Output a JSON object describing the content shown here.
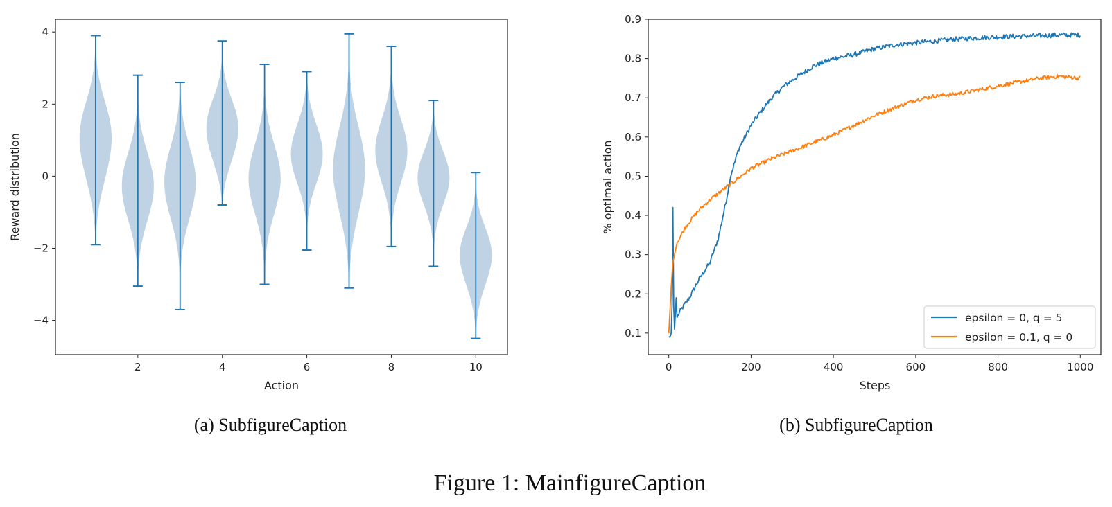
{
  "chart_data": [
    {
      "type": "violin",
      "xlabel": "Action",
      "ylabel": "Reward distribution",
      "xticks": [
        2,
        4,
        6,
        8,
        10
      ],
      "yticks": [
        -4,
        -2,
        0,
        2,
        4
      ],
      "xlim": [
        0.05,
        10.75
      ],
      "ylim": [
        -4.95,
        4.35
      ],
      "caption": "(a)  SubfigureCaption",
      "colors": {
        "fill": "#a9c4dc",
        "line": "#1f77b4"
      },
      "violins": [
        {
          "action": 1,
          "min": -1.9,
          "max": 3.9,
          "peaks": [
            [
              1.4,
              0.75
            ],
            [
              0.0,
              0.4
            ]
          ]
        },
        {
          "action": 2,
          "min": -3.05,
          "max": 2.8,
          "peaks": [
            [
              -0.1,
              0.75
            ],
            [
              -1.0,
              0.3
            ]
          ]
        },
        {
          "action": 3,
          "min": -3.7,
          "max": 2.6,
          "peaks": [
            [
              -0.3,
              0.75
            ],
            [
              0.5,
              0.35
            ]
          ]
        },
        {
          "action": 4,
          "min": -0.8,
          "max": 3.75,
          "peaks": [
            [
              1.6,
              0.75
            ],
            [
              0.5,
              0.5
            ]
          ]
        },
        {
          "action": 5,
          "min": -3.0,
          "max": 3.1,
          "peaks": [
            [
              0.1,
              0.75
            ],
            [
              -0.7,
              0.3
            ]
          ]
        },
        {
          "action": 6,
          "min": -2.05,
          "max": 2.9,
          "peaks": [
            [
              0.4,
              0.75
            ],
            [
              1.2,
              0.45
            ]
          ]
        },
        {
          "action": 7,
          "min": -3.1,
          "max": 3.95,
          "peaks": [
            [
              0.5,
              0.75
            ],
            [
              -0.8,
              0.4
            ]
          ]
        },
        {
          "action": 8,
          "min": -1.95,
          "max": 3.6,
          "peaks": [
            [
              0.9,
              0.75
            ],
            [
              0.2,
              0.4
            ]
          ]
        },
        {
          "action": 9,
          "min": -2.5,
          "max": 2.1,
          "peaks": [
            [
              0.2,
              0.75
            ],
            [
              -0.5,
              0.35
            ]
          ]
        },
        {
          "action": 10,
          "min": -4.5,
          "max": 0.1,
          "peaks": [
            [
              -2.0,
              0.75
            ],
            [
              -3.0,
              0.3
            ]
          ]
        }
      ]
    },
    {
      "type": "line",
      "xlabel": "Steps",
      "ylabel": "% optimal action",
      "xticks": [
        0,
        200,
        400,
        600,
        800,
        1000
      ],
      "yticks": [
        0.1,
        0.2,
        0.3,
        0.4,
        0.5,
        0.6,
        0.7,
        0.8,
        0.9
      ],
      "xlim": [
        -50,
        1050
      ],
      "ylim": [
        0.045,
        0.9
      ],
      "caption": "(b)  SubfigureCaption",
      "legend_position": "lower-right",
      "series": [
        {
          "name": "epsilon = 0, q = 5",
          "color": "#1f77b4",
          "points": [
            [
              0,
              0.09
            ],
            [
              3,
              0.09
            ],
            [
              6,
              0.1
            ],
            [
              9,
              0.2
            ],
            [
              10,
              0.42
            ],
            [
              11,
              0.25
            ],
            [
              13,
              0.09
            ],
            [
              15,
              0.13
            ],
            [
              18,
              0.19
            ],
            [
              20,
              0.14
            ],
            [
              30,
              0.16
            ],
            [
              50,
              0.19
            ],
            [
              75,
              0.24
            ],
            [
              100,
              0.28
            ],
            [
              120,
              0.34
            ],
            [
              140,
              0.44
            ],
            [
              150,
              0.5
            ],
            [
              170,
              0.57
            ],
            [
              200,
              0.63
            ],
            [
              220,
              0.66
            ],
            [
              250,
              0.7
            ],
            [
              280,
              0.73
            ],
            [
              300,
              0.745
            ],
            [
              350,
              0.78
            ],
            [
              400,
              0.8
            ],
            [
              450,
              0.81
            ],
            [
              500,
              0.825
            ],
            [
              550,
              0.835
            ],
            [
              600,
              0.84
            ],
            [
              650,
              0.845
            ],
            [
              700,
              0.85
            ],
            [
              750,
              0.853
            ],
            [
              800,
              0.855
            ],
            [
              850,
              0.857
            ],
            [
              900,
              0.858
            ],
            [
              950,
              0.86
            ],
            [
              1000,
              0.86
            ]
          ],
          "noise": 0.006
        },
        {
          "name": "epsilon = 0.1, q = 0",
          "color": "#ff7f0e",
          "points": [
            [
              0,
              0.1
            ],
            [
              5,
              0.2
            ],
            [
              10,
              0.28
            ],
            [
              20,
              0.33
            ],
            [
              40,
              0.37
            ],
            [
              70,
              0.41
            ],
            [
              100,
              0.44
            ],
            [
              150,
              0.48
            ],
            [
              200,
              0.52
            ],
            [
              250,
              0.545
            ],
            [
              300,
              0.565
            ],
            [
              350,
              0.585
            ],
            [
              400,
              0.605
            ],
            [
              450,
              0.63
            ],
            [
              500,
              0.655
            ],
            [
              550,
              0.675
            ],
            [
              600,
              0.695
            ],
            [
              650,
              0.705
            ],
            [
              700,
              0.71
            ],
            [
              750,
              0.72
            ],
            [
              800,
              0.73
            ],
            [
              850,
              0.74
            ],
            [
              900,
              0.75
            ],
            [
              950,
              0.755
            ],
            [
              1000,
              0.75
            ]
          ],
          "noise": 0.005
        }
      ]
    }
  ],
  "main_caption": "Figure 1: MainfigureCaption"
}
